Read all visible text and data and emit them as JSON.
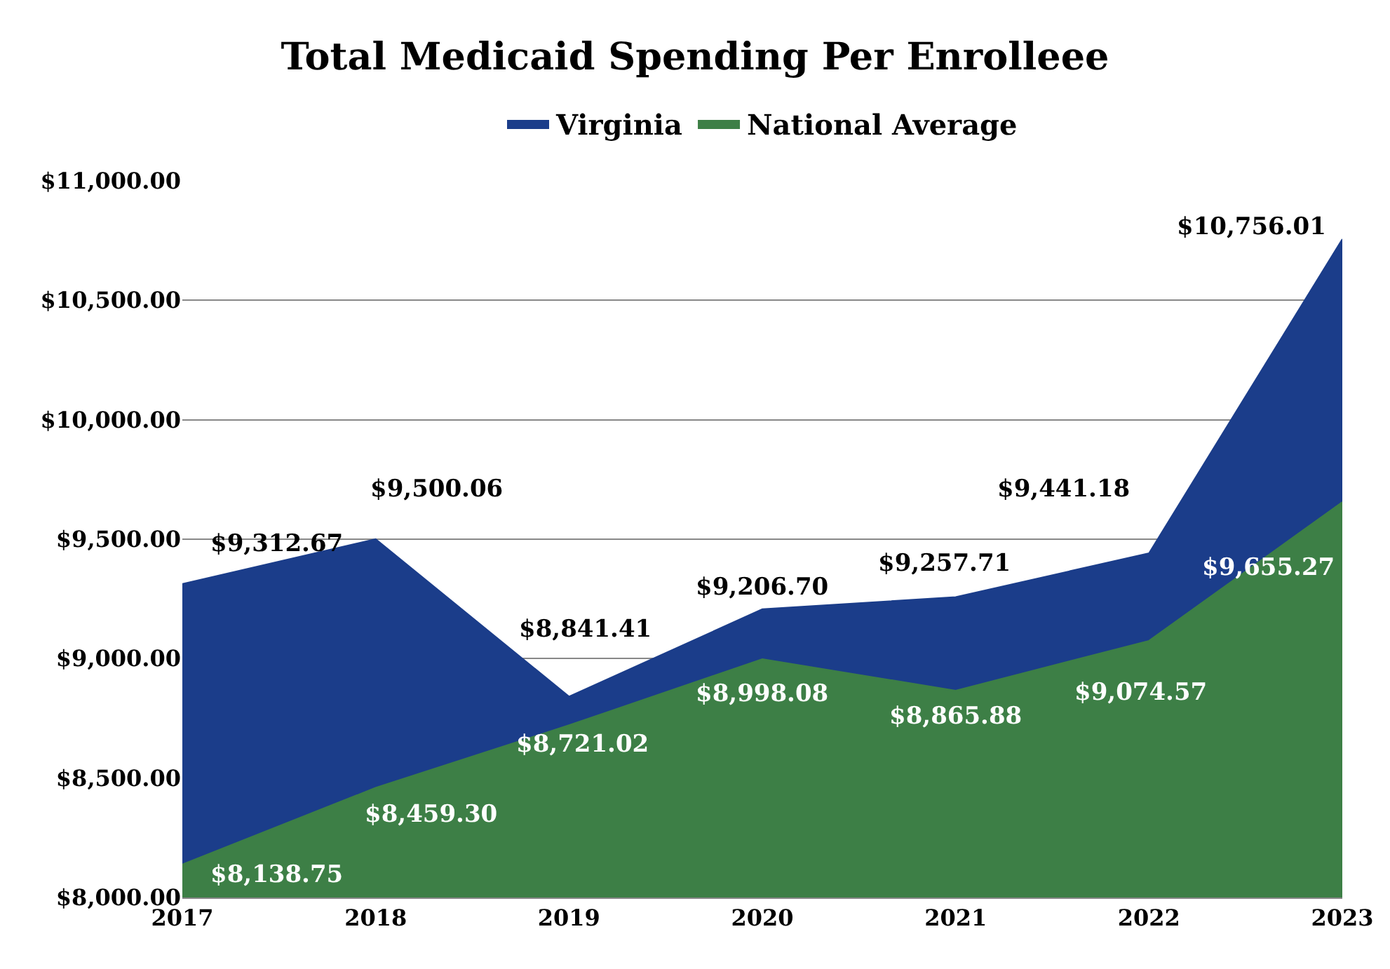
{
  "chart_data": {
    "type": "area",
    "title": "Total Medicaid Spending Per Enrolleee",
    "categories": [
      "2017",
      "2018",
      "2019",
      "2020",
      "2021",
      "2022",
      "2023"
    ],
    "series": [
      {
        "name": "Virginia",
        "color": "#1b3d8a",
        "values": [
          9312.67,
          9500.06,
          8841.41,
          9206.7,
          9257.71,
          9441.18,
          10756.01
        ],
        "value_labels": [
          "$9,312.67",
          "$9,500.06",
          "$8,841.41",
          "$9,206.70",
          "$9,257.71",
          "$9,441.18",
          "$10,756.01"
        ]
      },
      {
        "name": "National Average",
        "color": "#3d7f46",
        "values": [
          8138.75,
          8459.3,
          8721.02,
          8998.08,
          8865.88,
          9074.57,
          9655.27
        ],
        "value_labels": [
          "$8,138.75",
          "$8,459.30",
          "$8,721.02",
          "$8,998.08",
          "$8,865.88",
          "$9,074.57",
          "$9,655.27"
        ]
      }
    ],
    "ylim": [
      8000,
      11000
    ],
    "yticks": [
      {
        "value": 8000,
        "label": "$8,000.00"
      },
      {
        "value": 8500,
        "label": "$8,500.00"
      },
      {
        "value": 9000,
        "label": "$9,000.00"
      },
      {
        "value": 9500,
        "label": "$9,500.00"
      },
      {
        "value": 10000,
        "label": "$10,000.00"
      },
      {
        "value": 10500,
        "label": "$10,500.00"
      },
      {
        "value": 11000,
        "label": "$11,000.00"
      }
    ],
    "grid": "y",
    "legend": "top"
  }
}
